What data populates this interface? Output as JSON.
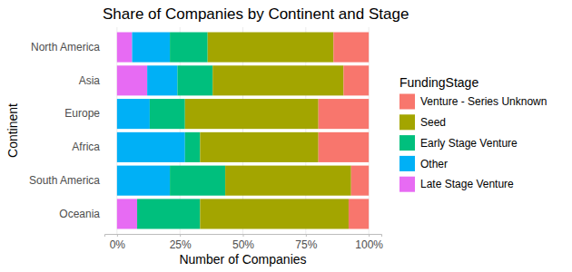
{
  "chart_data": {
    "type": "bar",
    "orientation": "horizontal",
    "stacked": true,
    "title": "Share of Companies by Continent and Stage",
    "x_label": "Number of Companies",
    "y_label": "Continent",
    "legend_title": "FundingStage",
    "legend": "right",
    "grid": true,
    "categories": [
      "North America",
      "Asia",
      "Europe",
      "Africa",
      "South America",
      "Oceania"
    ],
    "series": [
      {
        "name": "Venture - Series Unknown",
        "color": "#F8766D",
        "values": [
          14,
          10,
          20,
          20,
          7,
          8
        ]
      },
      {
        "name": "Seed",
        "color": "#A3A500",
        "values": [
          50,
          52,
          53,
          47,
          50,
          59
        ]
      },
      {
        "name": "Early Stage Venture",
        "color": "#00BF7D",
        "values": [
          15,
          14,
          14,
          6,
          22,
          25
        ]
      },
      {
        "name": "Other",
        "color": "#00B0F6",
        "values": [
          15,
          12,
          13,
          27,
          21,
          0
        ]
      },
      {
        "name": "Late Stage Venture",
        "color": "#E76BF3",
        "values": [
          6,
          12,
          0,
          0,
          0,
          8
        ]
      }
    ],
    "xlim": [
      -5,
      105
    ],
    "xticks": [
      {
        "value": 0,
        "label": "0%"
      },
      {
        "value": 25,
        "label": "25%"
      },
      {
        "value": 50,
        "label": "50%"
      },
      {
        "value": 75,
        "label": "75%"
      },
      {
        "value": 100,
        "label": "100%"
      }
    ]
  }
}
